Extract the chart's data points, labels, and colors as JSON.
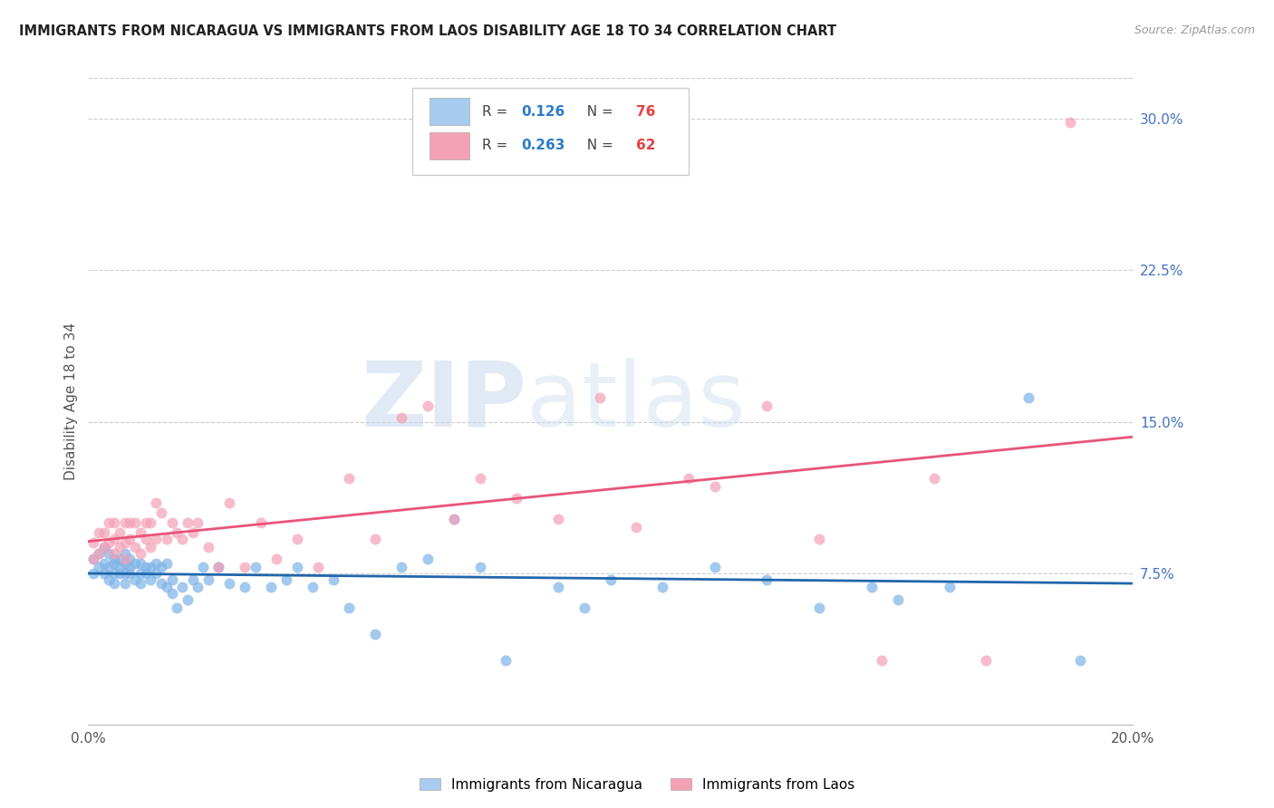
{
  "title": "IMMIGRANTS FROM NICARAGUA VS IMMIGRANTS FROM LAOS DISABILITY AGE 18 TO 34 CORRELATION CHART",
  "source": "Source: ZipAtlas.com",
  "ylabel": "Disability Age 18 to 34",
  "xlim": [
    0.0,
    0.2
  ],
  "ylim": [
    0.0,
    0.32
  ],
  "ytick_right": [
    0.075,
    0.15,
    0.225,
    0.3
  ],
  "ytick_right_labels": [
    "7.5%",
    "15.0%",
    "22.5%",
    "30.0%"
  ],
  "nicaragua_R": "0.126",
  "nicaragua_N": "76",
  "laos_R": "0.263",
  "laos_N": "62",
  "nicaragua_color": "#7EB3E8",
  "laos_color": "#F4A0B5",
  "nicaragua_line_color": "#2166AC",
  "laos_line_color": "#E8547A",
  "legend_color_nicaragua": "#A8CBF0",
  "legend_color_laos": "#F4A0B5",
  "nicaragua_x": [
    0.001,
    0.001,
    0.002,
    0.002,
    0.003,
    0.003,
    0.003,
    0.004,
    0.004,
    0.004,
    0.005,
    0.005,
    0.005,
    0.005,
    0.006,
    0.006,
    0.006,
    0.007,
    0.007,
    0.007,
    0.007,
    0.008,
    0.008,
    0.008,
    0.009,
    0.009,
    0.01,
    0.01,
    0.01,
    0.011,
    0.011,
    0.012,
    0.012,
    0.013,
    0.013,
    0.014,
    0.014,
    0.015,
    0.015,
    0.016,
    0.016,
    0.017,
    0.018,
    0.019,
    0.02,
    0.021,
    0.022,
    0.023,
    0.025,
    0.027,
    0.03,
    0.032,
    0.035,
    0.038,
    0.04,
    0.043,
    0.047,
    0.05,
    0.055,
    0.06,
    0.065,
    0.07,
    0.075,
    0.08,
    0.09,
    0.095,
    0.1,
    0.11,
    0.12,
    0.13,
    0.14,
    0.15,
    0.155,
    0.165,
    0.18,
    0.19
  ],
  "nicaragua_y": [
    0.075,
    0.082,
    0.078,
    0.085,
    0.08,
    0.075,
    0.088,
    0.078,
    0.072,
    0.085,
    0.08,
    0.075,
    0.082,
    0.07,
    0.078,
    0.075,
    0.082,
    0.08,
    0.075,
    0.07,
    0.085,
    0.078,
    0.075,
    0.082,
    0.08,
    0.072,
    0.075,
    0.08,
    0.07,
    0.078,
    0.075,
    0.072,
    0.078,
    0.08,
    0.075,
    0.07,
    0.078,
    0.068,
    0.08,
    0.065,
    0.072,
    0.058,
    0.068,
    0.062,
    0.072,
    0.068,
    0.078,
    0.072,
    0.078,
    0.07,
    0.068,
    0.078,
    0.068,
    0.072,
    0.078,
    0.068,
    0.072,
    0.058,
    0.045,
    0.078,
    0.082,
    0.102,
    0.078,
    0.032,
    0.068,
    0.058,
    0.072,
    0.068,
    0.078,
    0.072,
    0.058,
    0.068,
    0.062,
    0.068,
    0.162,
    0.032
  ],
  "laos_x": [
    0.001,
    0.001,
    0.002,
    0.002,
    0.003,
    0.003,
    0.004,
    0.004,
    0.005,
    0.005,
    0.005,
    0.006,
    0.006,
    0.007,
    0.007,
    0.007,
    0.008,
    0.008,
    0.009,
    0.009,
    0.01,
    0.01,
    0.011,
    0.011,
    0.012,
    0.012,
    0.013,
    0.013,
    0.014,
    0.015,
    0.016,
    0.017,
    0.018,
    0.019,
    0.02,
    0.021,
    0.023,
    0.025,
    0.027,
    0.03,
    0.033,
    0.036,
    0.04,
    0.044,
    0.05,
    0.055,
    0.06,
    0.065,
    0.07,
    0.075,
    0.082,
    0.09,
    0.098,
    0.105,
    0.115,
    0.12,
    0.13,
    0.14,
    0.152,
    0.162,
    0.172,
    0.188
  ],
  "laos_y": [
    0.082,
    0.09,
    0.085,
    0.095,
    0.088,
    0.095,
    0.09,
    0.1,
    0.085,
    0.092,
    0.1,
    0.088,
    0.095,
    0.1,
    0.09,
    0.082,
    0.1,
    0.092,
    0.088,
    0.1,
    0.095,
    0.085,
    0.1,
    0.092,
    0.088,
    0.1,
    0.092,
    0.11,
    0.105,
    0.092,
    0.1,
    0.095,
    0.092,
    0.1,
    0.095,
    0.1,
    0.088,
    0.078,
    0.11,
    0.078,
    0.1,
    0.082,
    0.092,
    0.078,
    0.122,
    0.092,
    0.152,
    0.158,
    0.102,
    0.122,
    0.112,
    0.102,
    0.162,
    0.098,
    0.122,
    0.118,
    0.158,
    0.092,
    0.032,
    0.122,
    0.032,
    0.298
  ],
  "watermark_zip": "ZIP",
  "watermark_atlas": "atlas",
  "background_color": "#FFFFFF",
  "grid_color": "#CCCCCC"
}
